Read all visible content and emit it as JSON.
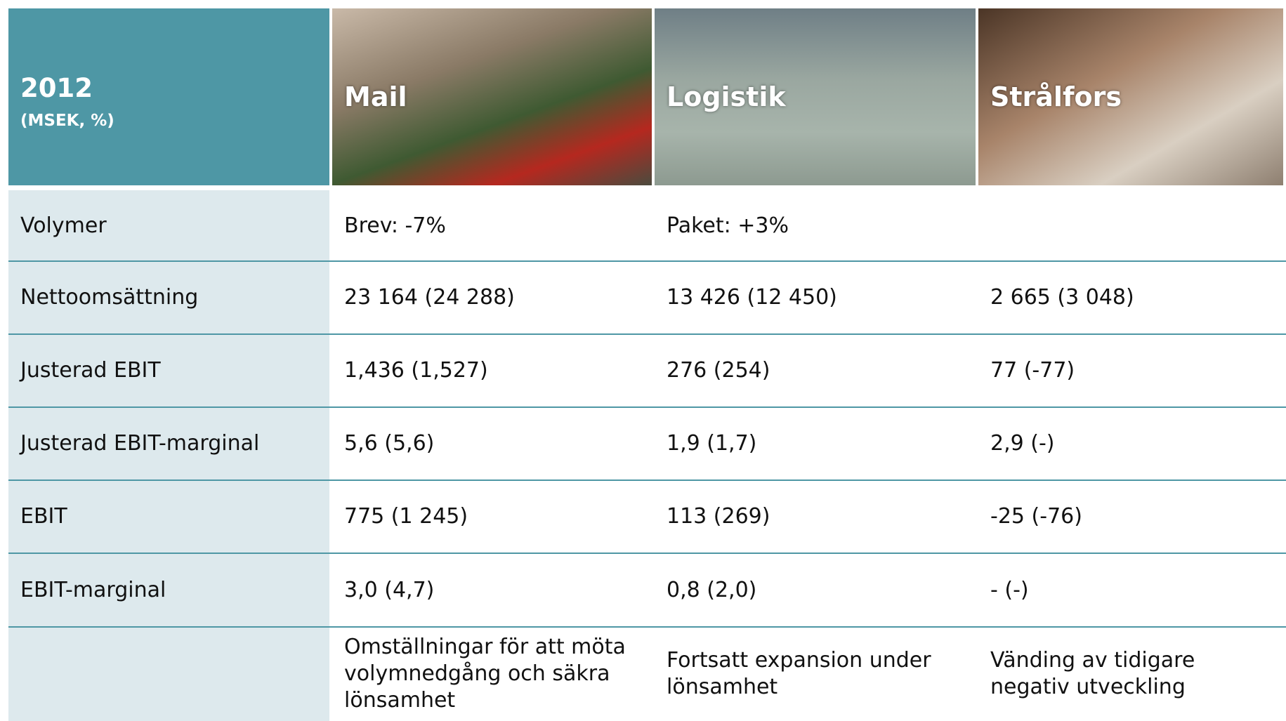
{
  "header": {
    "year": "2012",
    "unit": "(MSEK, %)",
    "columns": [
      "Mail",
      "Logistik",
      "Strålfors"
    ]
  },
  "rows": [
    [
      "Volymer",
      "Brev: -7%",
      "Paket: +3%"
    ],
    [
      "Nettoomsättning",
      "23 164 (24 288)",
      "13 426 (12 450)",
      "2 665 (3 048)"
    ],
    [
      "Justerad EBIT",
      "1,436 (1,527)",
      "276 (254)",
      "77 (-77)"
    ],
    [
      "Justerad EBIT-marginal",
      "5,6 (5,6)",
      "1,9 (1,7)",
      "2,9 (-)"
    ],
    [
      "EBIT",
      "775 (1 245)",
      "113 (269)",
      "-25 (-76)"
    ],
    [
      "EBIT-marginal",
      "3,0 (4,7)",
      "0,8 (2,0)",
      "- (-)"
    ]
  ],
  "notes": [
    "Omställningar för att möta volymnedgång och säkra lönsamhet",
    "Fortsatt expansion under lönsamhet",
    "Vänding av tidigare negativ utveckling"
  ]
}
